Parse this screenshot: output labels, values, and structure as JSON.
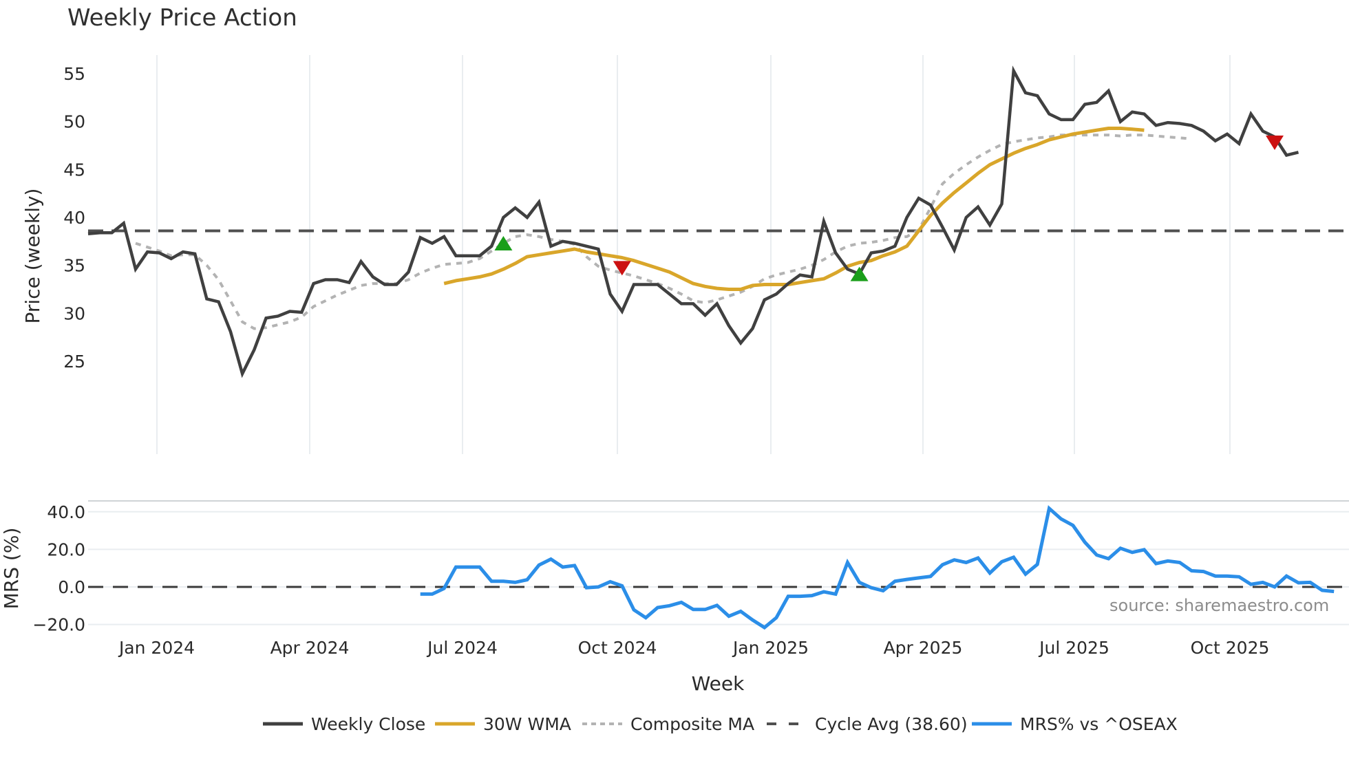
{
  "title": "Weekly Price Action",
  "source_label": "source: sharemaestro.com",
  "colors": {
    "weekly_close": "#404040",
    "wma": "#d9a62a",
    "composite": "#b3b3b3",
    "cycle_avg": "#505050",
    "mrs": "#2b8ee8",
    "buy_marker": "#1a9e1a",
    "sell_marker": "#cc1111",
    "grid": "#e9edf0"
  },
  "legend": [
    {
      "key": "weekly_close",
      "label": "Weekly Close",
      "style": "solid"
    },
    {
      "key": "wma",
      "label": "30W WMA",
      "style": "solid"
    },
    {
      "key": "composite",
      "label": "Composite MA",
      "style": "dotted"
    },
    {
      "key": "cycle_avg",
      "label": "Cycle Avg (38.60)",
      "style": "dashed"
    },
    {
      "key": "mrs",
      "label": "MRS% vs ^OSEAX",
      "style": "solid"
    }
  ],
  "chart_data": [
    {
      "type": "line",
      "title": "Weekly Price Action",
      "xlabel": "Week",
      "ylabel": "Price (weekly)",
      "ylim": [
        22,
        57
      ],
      "yticks": [
        25,
        30,
        35,
        40,
        45,
        50,
        55
      ],
      "xticks": [
        "Jan 2024",
        "Apr 2024",
        "Jul 2024",
        "Oct 2024",
        "Jan 2025",
        "Apr 2025",
        "Jul 2025",
        "Oct 2025"
      ],
      "grid": true,
      "legend_position": "bottom",
      "cycle_avg": 38.6,
      "start_week": "2023-11-06",
      "series": [
        {
          "name": "Weekly Close",
          "values": [
            38.3,
            38.4,
            38.4,
            39.4,
            34.6,
            36.4,
            36.3,
            35.7,
            36.4,
            36.2,
            31.5,
            31.2,
            28.1,
            23.7,
            26.2,
            29.5,
            29.7,
            30.2,
            30.1,
            33.1,
            33.5,
            33.5,
            33.2,
            35.4,
            33.8,
            33.0,
            33.0,
            34.3,
            37.9,
            37.3,
            38.0,
            36.0,
            36.0,
            36.0,
            37.0,
            40.0,
            41.0,
            40.0,
            41.6,
            37.0,
            37.5,
            37.3,
            37.0,
            36.7,
            32.0,
            30.2,
            33.0,
            33.0,
            33.0,
            32.0,
            31.0,
            31.0,
            29.8,
            31.0,
            28.7,
            26.9,
            28.4,
            31.4,
            32.0,
            33.1,
            34.0,
            33.8,
            39.6,
            36.3,
            34.6,
            34.1,
            36.3,
            36.5,
            37.0,
            40.0,
            42.0,
            41.3,
            39.0,
            36.6,
            40.0,
            41.1,
            39.2,
            41.4,
            55.3,
            53.0,
            52.7,
            50.8,
            50.2,
            50.2,
            51.8,
            52.0,
            53.2,
            50.0,
            51.0,
            50.8,
            49.6,
            49.9,
            49.8,
            49.6,
            49.0,
            48.0,
            48.7,
            47.7,
            50.8,
            49.0,
            48.4,
            46.5,
            46.8
          ]
        },
        {
          "name": "30W WMA",
          "values": [
            null,
            null,
            null,
            null,
            null,
            null,
            null,
            null,
            null,
            null,
            null,
            null,
            null,
            null,
            null,
            null,
            null,
            null,
            null,
            null,
            null,
            null,
            null,
            null,
            null,
            null,
            null,
            null,
            null,
            null,
            33.1,
            33.4,
            33.6,
            33.8,
            34.1,
            34.6,
            35.2,
            35.9,
            36.1,
            36.3,
            36.5,
            36.7,
            36.4,
            36.2,
            36.0,
            35.8,
            35.5,
            35.1,
            34.7,
            34.3,
            33.7,
            33.1,
            32.8,
            32.6,
            32.5,
            32.5,
            32.9,
            33.0,
            33.0,
            33.0,
            33.2,
            33.4,
            33.6,
            34.2,
            34.9,
            35.3,
            35.5,
            36.0,
            36.4,
            37.0,
            38.6,
            40.2,
            41.5,
            42.6,
            43.6,
            44.6,
            45.5,
            46.1,
            46.7,
            47.2,
            47.6,
            48.1,
            48.4,
            48.7,
            48.9,
            49.1,
            49.3,
            49.3,
            49.2,
            49.1
          ]
        },
        {
          "name": "Composite MA",
          "values": [
            null,
            null,
            null,
            null,
            37.3,
            36.9,
            36.5,
            36.0,
            36.1,
            36.1,
            35.0,
            33.5,
            31.3,
            29.1,
            28.4,
            28.5,
            28.8,
            29.1,
            29.6,
            30.7,
            31.3,
            31.9,
            32.4,
            32.9,
            33.1,
            33.1,
            33.1,
            33.5,
            34.2,
            34.7,
            35.1,
            35.2,
            35.3,
            35.7,
            36.5,
            37.3,
            38.0,
            38.2,
            38.0,
            37.7,
            37.5,
            37.2,
            35.9,
            34.9,
            34.5,
            34.2,
            33.9,
            33.5,
            33.1,
            32.6,
            32.0,
            31.3,
            31.1,
            31.4,
            31.8,
            32.2,
            32.8,
            33.6,
            34.0,
            34.3,
            34.6,
            35.0,
            35.6,
            36.4,
            37.0,
            37.3,
            37.4,
            37.6,
            37.9,
            38.0,
            38.7,
            41.0,
            43.5,
            44.6,
            45.5,
            46.3,
            47.0,
            47.6,
            47.9,
            48.1,
            48.3,
            48.4,
            48.6,
            48.6,
            48.6,
            48.6,
            48.6,
            48.5,
            48.6,
            48.6,
            48.5,
            48.4,
            48.3,
            48.2
          ]
        }
      ],
      "markers": [
        {
          "type": "buy",
          "week_index": 35,
          "value": 37.2
        },
        {
          "type": "sell",
          "week_index": 45,
          "value": 34.8
        },
        {
          "type": "buy",
          "week_index": 65,
          "value": 34.0
        },
        {
          "type": "sell",
          "week_index": 100,
          "value": 47.9
        }
      ]
    },
    {
      "type": "line",
      "title": "",
      "xlabel": "Week",
      "ylabel": "MRS (%)",
      "ylim": [
        -25,
        46
      ],
      "yticks": [
        "40.0",
        "20.0",
        "0.0",
        "−20.0"
      ],
      "yticks_values": [
        40,
        20,
        0,
        -20
      ],
      "zero_line": 0,
      "series": [
        {
          "name": "MRS% vs ^OSEAX",
          "start_index": 28,
          "values": [
            -3.8,
            -3.8,
            -0.8,
            10.6,
            10.6,
            10.6,
            3.0,
            3.0,
            2.4,
            3.8,
            11.6,
            14.8,
            10.6,
            11.4,
            -0.4,
            0.0,
            2.8,
            0.6,
            -12.2,
            -16.4,
            -11.0,
            -10.0,
            -8.2,
            -12.0,
            -12.0,
            -9.8,
            -15.6,
            -13.0,
            -17.6,
            -21.6,
            -16.4,
            -5.0,
            -5.0,
            -4.6,
            -2.6,
            -3.8,
            13.0,
            2.4,
            -0.4,
            -2.0,
            3.0,
            4.0,
            4.8,
            5.6,
            11.8,
            14.4,
            13.0,
            15.4,
            7.4,
            13.4,
            15.8,
            6.8,
            12.0,
            41.8,
            36.2,
            32.8,
            23.8,
            17.0,
            15.0,
            20.6,
            18.4,
            19.8,
            12.4,
            13.8,
            13.0,
            8.6,
            8.2,
            5.8,
            5.8,
            5.4,
            1.4,
            2.4,
            0.0,
            5.8,
            2.2,
            2.4,
            -1.8,
            -2.4
          ]
        }
      ]
    }
  ],
  "axes": {
    "price_ylabel": "Price (weekly)",
    "mrs_ylabel": "MRS (%)",
    "xlabel": "Week",
    "price_yticks": [
      "55",
      "50",
      "45",
      "40",
      "35",
      "30",
      "25"
    ],
    "mrs_yticks": [
      "40.0",
      "20.0",
      "0.0",
      "−20.0"
    ],
    "xticks": [
      "Jan 2024",
      "Apr 2024",
      "Jul 2024",
      "Oct 2024",
      "Jan 2025",
      "Apr 2025",
      "Jul 2025",
      "Oct 2025"
    ]
  }
}
